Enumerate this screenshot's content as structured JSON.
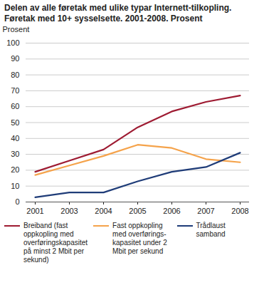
{
  "chart_data": {
    "type": "line",
    "title": "Delen av alle føretak med ulike typar Internett-tilkopling. Føretak med 10+ sysselsette. 2001-2008. Prosent",
    "y_label": "Prosent",
    "categories": [
      "2001",
      "2003",
      "2004",
      "2005",
      "2006",
      "2007",
      "2008"
    ],
    "series": [
      {
        "name": "Breiband (fast oppkopling med overføringskapasitet på minst 2 Mbit per sekund)",
        "color": "#9e1b32",
        "values": [
          19,
          26,
          33,
          47,
          57,
          63,
          67
        ]
      },
      {
        "name": "Fast oppkopling med overførings-kapasitet under 2 Mbit per sekund",
        "color": "#f5a34b",
        "values": [
          17,
          23,
          29,
          36,
          34,
          27,
          25
        ]
      },
      {
        "name": "Trådlaust samband",
        "color": "#1f3c78",
        "values": [
          3,
          6,
          6,
          13,
          19,
          22,
          31
        ]
      }
    ],
    "ylim": [
      0,
      100
    ],
    "yticks": [
      0,
      10,
      20,
      30,
      40,
      50,
      60,
      70,
      80,
      90,
      100
    ],
    "grid": true
  }
}
